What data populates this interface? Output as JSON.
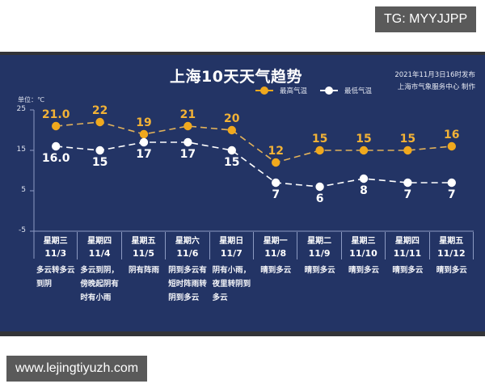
{
  "watermarks": {
    "top_right": "TG: MYYJJPP",
    "bottom_left": "www.lejingtiyuzh.com"
  },
  "header": {
    "title": "上海10天天气趋势",
    "published": "2021年11月3日16时发布",
    "producer": "上海市气象服务中心 制作",
    "unit_label": "单位：℃"
  },
  "legend": [
    {
      "name": "最高气温",
      "color": "#f0a91e"
    },
    {
      "name": "最低气温",
      "color": "#ffffff"
    }
  ],
  "days": [
    {
      "weekday": "星期三",
      "date": "11/3",
      "weather": "多云转多云到阴",
      "high_label": "21.0",
      "low_label": "16.0"
    },
    {
      "weekday": "星期四",
      "date": "11/4",
      "weather": "多云到阴，傍晚起阴有时有小雨",
      "high_label": "22",
      "low_label": "15"
    },
    {
      "weekday": "星期五",
      "date": "11/5",
      "weather": "阴有阵雨",
      "high_label": "19",
      "low_label": "17"
    },
    {
      "weekday": "星期六",
      "date": "11/6",
      "weather": "阴到多云有短时阵雨转阴到多云",
      "high_label": "21",
      "low_label": "17"
    },
    {
      "weekday": "星期日",
      "date": "11/7",
      "weather": "阴有小雨，夜里转阴到多云",
      "high_label": "20",
      "low_label": "15"
    },
    {
      "weekday": "星期一",
      "date": "11/8",
      "weather": "晴到多云",
      "high_label": "12",
      "low_label": "7"
    },
    {
      "weekday": "星期二",
      "date": "11/9",
      "weather": "晴到多云",
      "high_label": "15",
      "low_label": "6"
    },
    {
      "weekday": "星期三",
      "date": "11/10",
      "weather": "晴到多云",
      "high_label": "15",
      "low_label": "8"
    },
    {
      "weekday": "星期四",
      "date": "11/11",
      "weather": "晴到多云",
      "high_label": "15",
      "low_label": "7"
    },
    {
      "weekday": "星期五",
      "date": "11/12",
      "weather": "晴到多云",
      "high_label": "16",
      "low_label": "7"
    }
  ],
  "weather_lines": [
    [
      "多云转多云",
      "到阴"
    ],
    [
      "多云到阴，",
      "傍晚起阴有",
      "时有小雨"
    ],
    [
      "阴有阵雨"
    ],
    [
      "阴到多云有",
      "短时阵雨转",
      "阴到多云"
    ],
    [
      "阴有小雨，",
      "夜里转阴到",
      "多云"
    ],
    [
      "晴到多云"
    ],
    [
      "晴到多云"
    ],
    [
      "晴到多云"
    ],
    [
      "晴到多云"
    ],
    [
      "晴到多云"
    ]
  ],
  "colors": {
    "background": "#233465",
    "high": "#f0a91e",
    "high_label": "#f2b236",
    "low": "#ffffff",
    "axis": "#8c9ac2"
  },
  "chart_data": {
    "type": "line",
    "title": "上海10天天气趋势",
    "subtitle": "2021年11月3日16时发布 / 上海市气象服务中心 制作",
    "xlabel": "",
    "ylabel": "单位：℃",
    "categories": [
      "11/3",
      "11/4",
      "11/5",
      "11/6",
      "11/7",
      "11/8",
      "11/9",
      "11/10",
      "11/11",
      "11/12"
    ],
    "weekdays": [
      "星期三",
      "星期四",
      "星期五",
      "星期六",
      "星期日",
      "星期一",
      "星期二",
      "星期三",
      "星期四",
      "星期五"
    ],
    "series": [
      {
        "name": "最高气温",
        "values": [
          21,
          22,
          19,
          21,
          20,
          12,
          15,
          15,
          15,
          16
        ],
        "color": "#f0a91e",
        "style": "dashed"
      },
      {
        "name": "最低气温",
        "values": [
          16,
          15,
          17,
          17,
          15,
          7,
          6,
          8,
          7,
          7
        ],
        "color": "#ffffff",
        "style": "dashed"
      }
    ],
    "ylim": [
      -5,
      25
    ],
    "yticks": [
      25,
      15,
      5,
      -5
    ],
    "grid": false,
    "legend_position": "top-center"
  }
}
